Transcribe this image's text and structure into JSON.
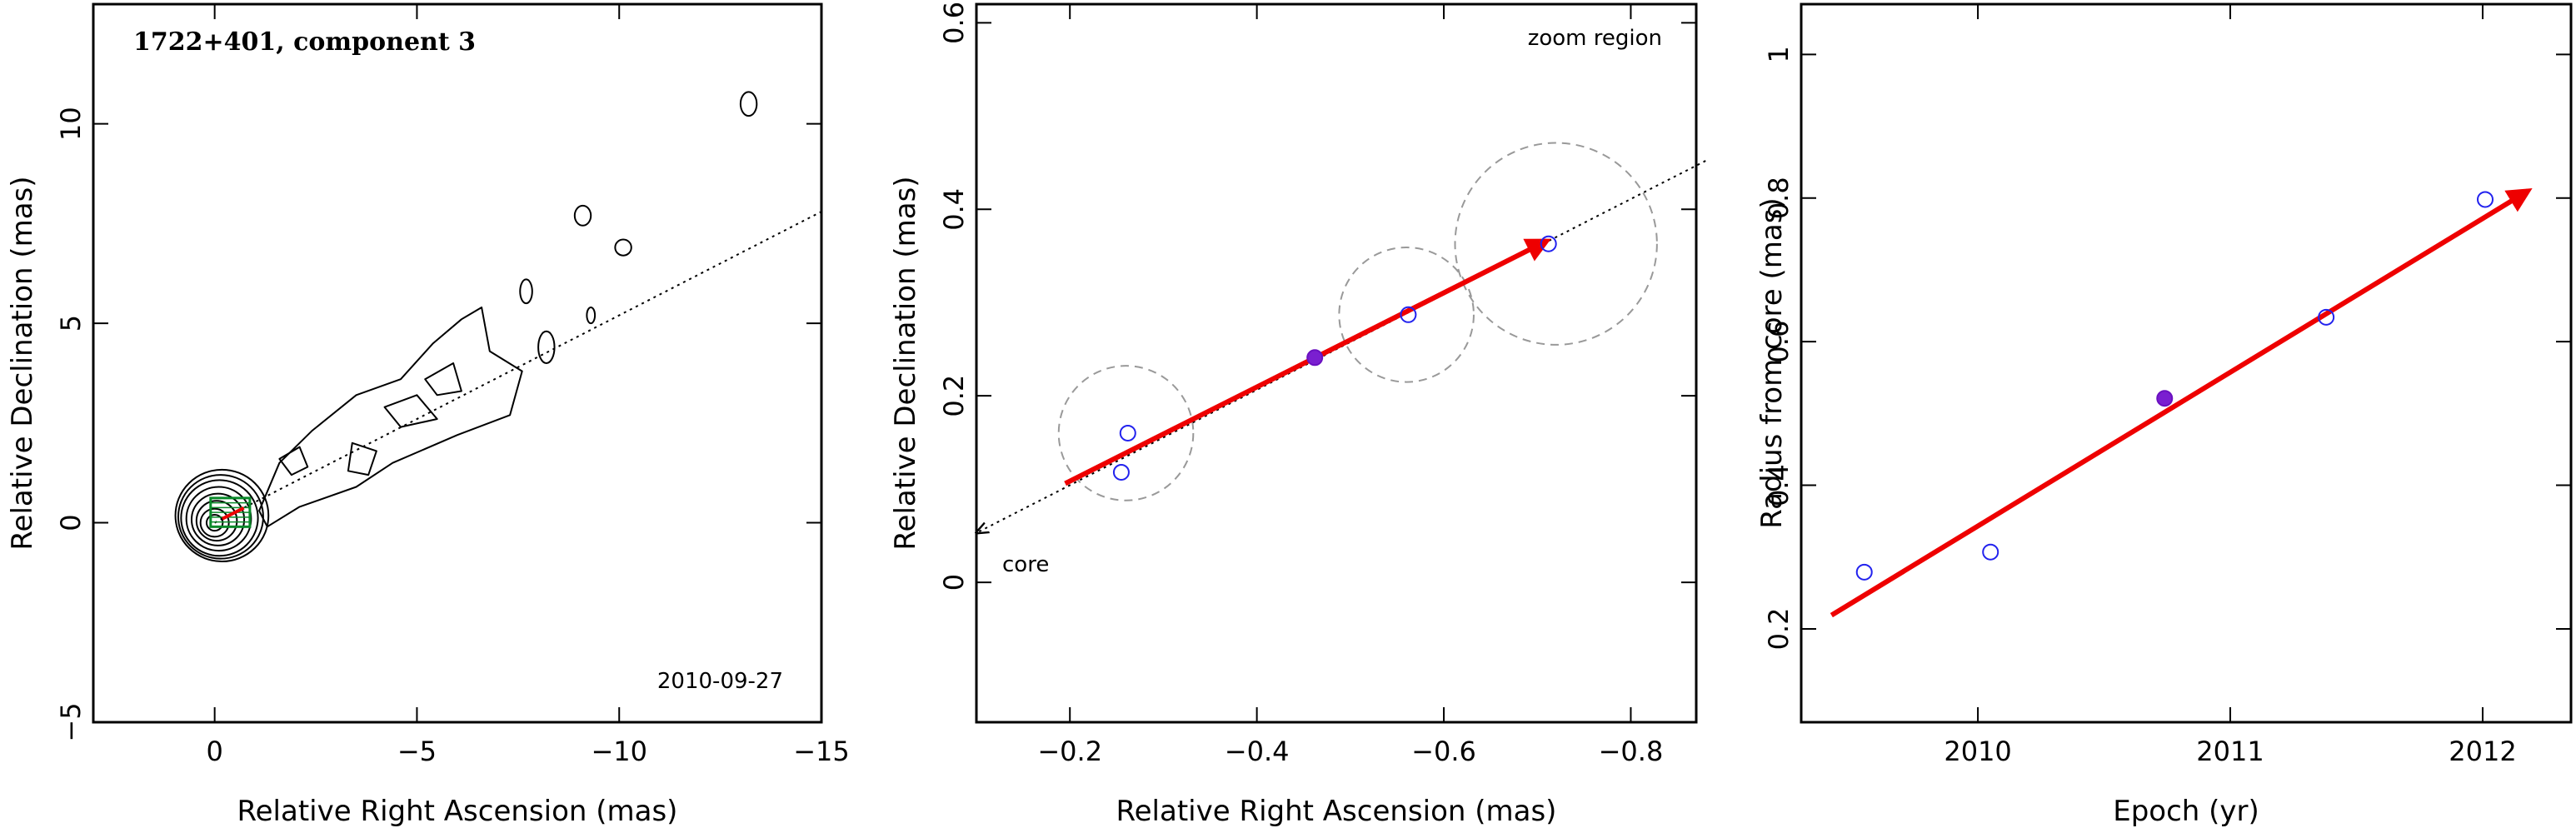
{
  "chart_data": [
    {
      "type": "contour",
      "title": "1722+401, component 3",
      "date_label": "2010-09-27",
      "xlabel": "Relative Right Ascension (mas)",
      "ylabel": "Relative Declination (mas)",
      "xlim": [
        3,
        -15
      ],
      "ylim": [
        -5,
        13
      ],
      "xticks": [
        0,
        -5,
        -10,
        -15
      ],
      "yticks": [
        -5,
        0,
        5,
        10
      ],
      "core": [
        0,
        0
      ],
      "jet_direction_line": {
        "from": [
          0,
          0
        ],
        "to": [
          -15,
          7.8
        ]
      },
      "zoom_box": {
        "x": [
          0.1,
          -0.87
        ],
        "y": [
          -0.1,
          0.62
        ]
      },
      "contours": [
        {
          "cx": 0,
          "cy": 0,
          "rx": 0.2,
          "ry": 0.2
        },
        {
          "cx": 0,
          "cy": 0,
          "rx": 0.35,
          "ry": 0.35
        },
        {
          "cx": -0.05,
          "cy": 0.05,
          "rx": 0.5,
          "ry": 0.5
        },
        {
          "cx": -0.08,
          "cy": 0.08,
          "rx": 0.65,
          "ry": 0.65
        },
        {
          "cx": -0.1,
          "cy": 0.1,
          "rx": 0.8,
          "ry": 0.8
        },
        {
          "cx": -0.12,
          "cy": 0.12,
          "rx": 0.95,
          "ry": 0.95
        },
        {
          "cx": -0.15,
          "cy": 0.15,
          "rx": 1.05,
          "ry": 1.05
        },
        {
          "cx": -0.18,
          "cy": 0.18,
          "rx": 1.15,
          "ry": 1.15
        },
        {
          "cx": -13.2,
          "cy": 10.5,
          "rx": 0.2,
          "ry": 0.3
        },
        {
          "cx": -9.1,
          "cy": 7.7,
          "rx": 0.2,
          "ry": 0.25
        },
        {
          "cx": -10.1,
          "cy": 6.9,
          "rx": 0.2,
          "ry": 0.2
        },
        {
          "cx": -9.3,
          "cy": 5.2,
          "rx": 0.1,
          "ry": 0.2
        },
        {
          "cx": -7.7,
          "cy": 5.8,
          "rx": 0.15,
          "ry": 0.3
        },
        {
          "cx": -8.2,
          "cy": 4.4,
          "rx": 0.2,
          "ry": 0.4
        }
      ],
      "contour_paths": [
        [
          [
            -1.1,
            0.3
          ],
          [
            -1.6,
            1.5
          ],
          [
            -2.4,
            2.3
          ],
          [
            -3.5,
            3.2
          ],
          [
            -4.6,
            3.6
          ],
          [
            -5.4,
            4.5
          ],
          [
            -6.1,
            5.1
          ],
          [
            -6.6,
            5.4
          ],
          [
            -6.8,
            4.3
          ],
          [
            -7.6,
            3.8
          ],
          [
            -7.3,
            2.7
          ],
          [
            -6.0,
            2.2
          ],
          [
            -4.4,
            1.5
          ],
          [
            -3.5,
            0.9
          ],
          [
            -2.1,
            0.4
          ],
          [
            -1.3,
            -0.1
          ]
        ],
        [
          [
            -3.4,
            2.0
          ],
          [
            -4.0,
            1.8
          ],
          [
            -3.8,
            1.2
          ],
          [
            -3.3,
            1.3
          ]
        ],
        [
          [
            -1.6,
            1.6
          ],
          [
            -2.1,
            1.9
          ],
          [
            -2.3,
            1.4
          ],
          [
            -1.9,
            1.2
          ]
        ],
        [
          [
            -4.2,
            2.9
          ],
          [
            -5.0,
            3.2
          ],
          [
            -5.5,
            2.6
          ],
          [
            -4.6,
            2.4
          ]
        ],
        [
          [
            -5.2,
            3.6
          ],
          [
            -5.9,
            4.0
          ],
          [
            -6.1,
            3.3
          ],
          [
            -5.5,
            3.2
          ]
        ]
      ]
    },
    {
      "type": "scatter",
      "title": "",
      "xlabel": "Relative Right Ascension (mas)",
      "ylabel": "Relative Declination (mas)",
      "xlim": [
        -0.1,
        -0.87
      ],
      "ylim": [
        -0.15,
        0.62
      ],
      "xticks": [
        -0.2,
        -0.4,
        -0.6,
        -0.8
      ],
      "yticks": [
        0,
        0.2,
        0.4,
        0.6
      ],
      "annotations": {
        "zoom": "zoom region",
        "core": "core"
      },
      "points": [
        {
          "x": -0.255,
          "y": 0.118,
          "filled": false
        },
        {
          "x": -0.262,
          "y": 0.16,
          "filled": false
        },
        {
          "x": -0.462,
          "y": 0.241,
          "filled": true
        },
        {
          "x": -0.562,
          "y": 0.287,
          "filled": false
        },
        {
          "x": -0.712,
          "y": 0.363,
          "filled": false
        }
      ],
      "beam_circles": [
        {
          "cx": -0.26,
          "cy": 0.16,
          "r": 0.072
        },
        {
          "cx": -0.56,
          "cy": 0.287,
          "r": 0.072
        },
        {
          "cx": -0.72,
          "cy": 0.363,
          "r": 0.108
        }
      ],
      "fit_arrow": {
        "from": [
          -0.195,
          0.106
        ],
        "to": [
          -0.71,
          0.366
        ]
      },
      "direction_line": {
        "from": [
          -0.88,
          0.452
        ],
        "to": [
          -0.1,
          0.053
        ]
      }
    },
    {
      "type": "scatter",
      "title": "",
      "xlabel": "Epoch (yr)",
      "ylabel": "Radius from core (mas)",
      "xlim": [
        2009.3,
        2012.35
      ],
      "ylim": [
        0.07,
        1.07
      ],
      "xticks": [
        2010,
        2011,
        2012
      ],
      "yticks": [
        0.2,
        0.4,
        0.6,
        0.8,
        1
      ],
      "points": [
        {
          "x": 2009.55,
          "y": 0.279,
          "filled": false
        },
        {
          "x": 2010.05,
          "y": 0.307,
          "filled": false
        },
        {
          "x": 2010.74,
          "y": 0.521,
          "filled": true
        },
        {
          "x": 2011.38,
          "y": 0.634,
          "filled": false
        },
        {
          "x": 2012.01,
          "y": 0.798,
          "filled": false
        }
      ],
      "fit_arrow": {
        "from": [
          2009.42,
          0.219
        ],
        "to": [
          2012.18,
          0.81
        ]
      }
    }
  ]
}
